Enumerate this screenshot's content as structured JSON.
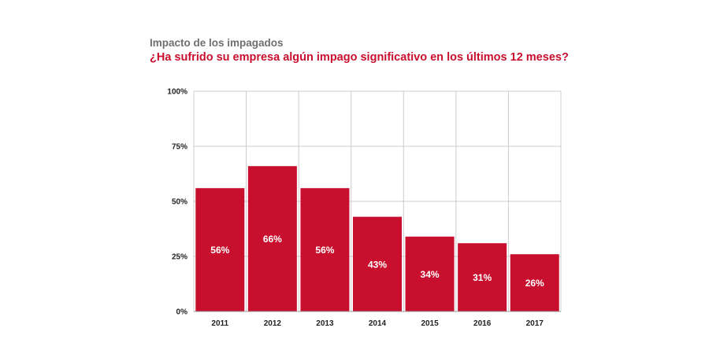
{
  "chart_data": {
    "type": "bar",
    "title": "Impacto de los impagados",
    "subtitle": "¿Ha sufrido su empresa algún impago significativo en los últimos 12 meses?",
    "categories": [
      "2011",
      "2012",
      "2013",
      "2014",
      "2015",
      "2016",
      "2017"
    ],
    "values": [
      56,
      66,
      56,
      43,
      34,
      31,
      26
    ],
    "data_labels": [
      "56%",
      "66%",
      "56%",
      "43%",
      "34%",
      "31%",
      "26%"
    ],
    "ylim": [
      0,
      100
    ],
    "yticks": [
      0,
      25,
      50,
      75,
      100
    ],
    "ytick_labels": [
      "0%",
      "25%",
      "50%",
      "75%",
      "100%"
    ],
    "xlabel": "",
    "ylabel": "",
    "grid": true,
    "bar_color": "#c8102e",
    "grid_color": "#cccccc"
  }
}
